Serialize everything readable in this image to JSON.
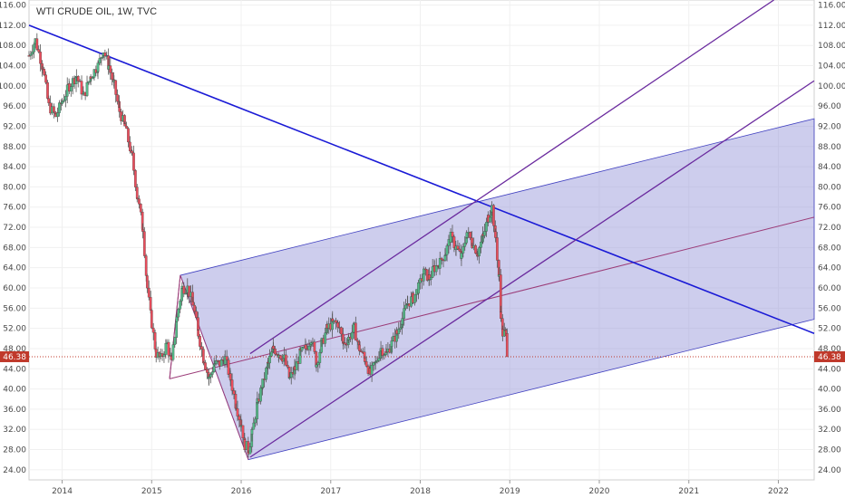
{
  "chart_data": {
    "type": "candlestick",
    "title": "WTI CRUDE OIL, 1W, TVC",
    "xlabel": "",
    "ylabel": "",
    "ylim": [
      22,
      117
    ],
    "xlim": [
      2013.63,
      2022.4
    ],
    "y_ticks": [
      "24.00",
      "28.00",
      "32.00",
      "36.00",
      "40.00",
      "44.00",
      "48.00",
      "52.00",
      "56.00",
      "60.00",
      "64.00",
      "68.00",
      "72.00",
      "76.00",
      "80.00",
      "84.00",
      "88.00",
      "92.00",
      "96.00",
      "100.00",
      "104.00",
      "108.00",
      "112.00",
      "116.00"
    ],
    "x_ticks": [
      {
        "label": "2014",
        "x": 2014.0
      },
      {
        "label": "2015",
        "x": 2015.0
      },
      {
        "label": "2016",
        "x": 2016.0
      },
      {
        "label": "2017",
        "x": 2017.0
      },
      {
        "label": "2018",
        "x": 2018.0
      },
      {
        "label": "2019",
        "x": 2019.0
      },
      {
        "label": "2020",
        "x": 2020.0
      },
      {
        "label": "2021",
        "x": 2021.0
      },
      {
        "label": "2022",
        "x": 2022.0
      }
    ],
    "last_price": "46.38",
    "last_value": 46.38,
    "colors": {
      "up": "#53b987",
      "down": "#eb4d5c",
      "wick": "#555555",
      "blue_line": "#1a1ad6",
      "purple": "#6a2a9e",
      "channel_fill": "#9090d8",
      "channel_edge": "#4040c0",
      "pitch_median": "#9b3c78",
      "price_label": "#c0392b"
    },
    "price_path": [
      [
        2013.63,
        106
      ],
      [
        2013.7,
        109
      ],
      [
        2013.78,
        104
      ],
      [
        2013.85,
        96
      ],
      [
        2013.93,
        94
      ],
      [
        2014.0,
        97
      ],
      [
        2014.08,
        100
      ],
      [
        2014.16,
        102
      ],
      [
        2014.24,
        98
      ],
      [
        2014.32,
        102
      ],
      [
        2014.4,
        104
      ],
      [
        2014.46,
        107
      ],
      [
        2014.52,
        104
      ],
      [
        2014.58,
        100
      ],
      [
        2014.64,
        95
      ],
      [
        2014.7,
        92
      ],
      [
        2014.78,
        86
      ],
      [
        2014.84,
        78
      ],
      [
        2014.9,
        72
      ],
      [
        2014.95,
        60
      ],
      [
        2015.0,
        53
      ],
      [
        2015.05,
        47
      ],
      [
        2015.1,
        46
      ],
      [
        2015.17,
        49
      ],
      [
        2015.22,
        45
      ],
      [
        2015.28,
        54
      ],
      [
        2015.34,
        60
      ],
      [
        2015.4,
        60
      ],
      [
        2015.46,
        57
      ],
      [
        2015.52,
        51
      ],
      [
        2015.58,
        46
      ],
      [
        2015.64,
        42
      ],
      [
        2015.7,
        45
      ],
      [
        2015.76,
        45
      ],
      [
        2015.82,
        46
      ],
      [
        2015.88,
        42
      ],
      [
        2015.94,
        37
      ],
      [
        2016.0,
        33
      ],
      [
        2016.04,
        29
      ],
      [
        2016.08,
        28
      ],
      [
        2016.12,
        31
      ],
      [
        2016.18,
        37
      ],
      [
        2016.24,
        41
      ],
      [
        2016.3,
        45
      ],
      [
        2016.36,
        48
      ],
      [
        2016.42,
        47
      ],
      [
        2016.48,
        46
      ],
      [
        2016.54,
        42
      ],
      [
        2016.6,
        44
      ],
      [
        2016.66,
        47
      ],
      [
        2016.72,
        48
      ],
      [
        2016.78,
        50
      ],
      [
        2016.84,
        45
      ],
      [
        2016.9,
        49
      ],
      [
        2016.96,
        52
      ],
      [
        2017.02,
        53
      ],
      [
        2017.08,
        53
      ],
      [
        2017.14,
        49
      ],
      [
        2017.2,
        50
      ],
      [
        2017.26,
        52
      ],
      [
        2017.32,
        48
      ],
      [
        2017.38,
        46
      ],
      [
        2017.44,
        43
      ],
      [
        2017.5,
        45
      ],
      [
        2017.56,
        48
      ],
      [
        2017.62,
        47
      ],
      [
        2017.68,
        49
      ],
      [
        2017.74,
        51
      ],
      [
        2017.8,
        54
      ],
      [
        2017.86,
        57
      ],
      [
        2017.92,
        58
      ],
      [
        2017.98,
        60
      ],
      [
        2018.04,
        63
      ],
      [
        2018.1,
        62
      ],
      [
        2018.16,
        64
      ],
      [
        2018.22,
        65
      ],
      [
        2018.28,
        67
      ],
      [
        2018.34,
        70
      ],
      [
        2018.4,
        68
      ],
      [
        2018.46,
        66
      ],
      [
        2018.52,
        71
      ],
      [
        2018.58,
        69
      ],
      [
        2018.64,
        67
      ],
      [
        2018.7,
        70
      ],
      [
        2018.76,
        74
      ],
      [
        2018.8,
        76
      ],
      [
        2018.84,
        70
      ],
      [
        2018.88,
        62
      ],
      [
        2018.9,
        55
      ],
      [
        2018.92,
        51
      ],
      [
        2018.95,
        51
      ],
      [
        2018.96,
        50
      ],
      [
        2018.97,
        46.38
      ]
    ]
  }
}
